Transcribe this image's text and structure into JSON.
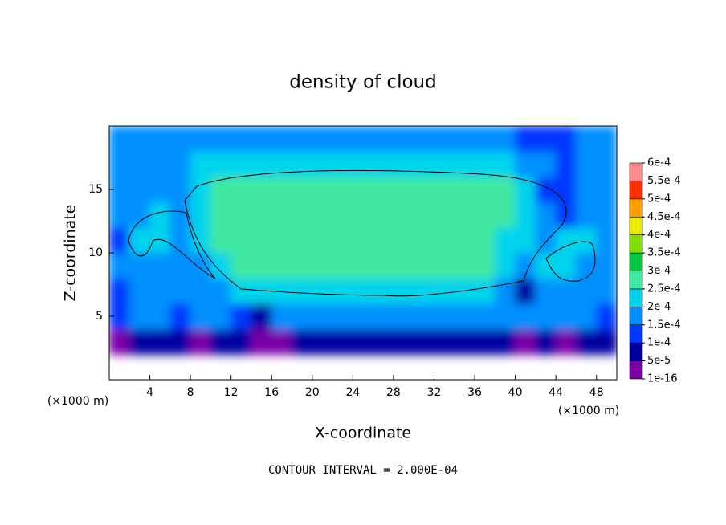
{
  "chart_data": {
    "type": "heatmap",
    "title": "density of cloud",
    "x_label": "X-coordinate",
    "y_label": "Z-coordinate",
    "x_unit": "(×1000 m)",
    "y_unit": "(×1000 m)",
    "note": "CONTOUR INTERVAL = 2.000E-04",
    "xlim": [
      0,
      50
    ],
    "ylim": [
      0,
      20
    ],
    "xticks": [
      4,
      8,
      12,
      16,
      20,
      24,
      28,
      32,
      36,
      40,
      44,
      48
    ],
    "yticks": [
      5,
      10,
      15
    ],
    "x": [
      1,
      3,
      5,
      7,
      9,
      11,
      13,
      15,
      17,
      19,
      21,
      23,
      25,
      27,
      29,
      31,
      33,
      35,
      37,
      39,
      41,
      43,
      45,
      47,
      49
    ],
    "y": [
      1,
      3,
      5,
      7,
      9,
      11,
      13,
      15,
      17,
      19
    ],
    "z": [
      [
        null,
        null,
        null,
        null,
        null,
        null,
        null,
        null,
        null,
        null,
        null,
        null,
        null,
        null,
        null,
        null,
        null,
        null,
        null,
        null,
        null,
        null,
        null,
        null,
        null
      ],
      [
        4e-05,
        6e-05,
        8e-05,
        6e-05,
        4e-05,
        7e-05,
        5e-05,
        4e-05,
        4e-05,
        7e-05,
        8e-05,
        6e-05,
        7e-05,
        5e-05,
        8e-05,
        6e-05,
        7e-05,
        8e-05,
        6e-05,
        5e-05,
        4e-05,
        6e-05,
        4e-05,
        6e-05,
        7e-05
      ],
      [
        0.00014,
        0.00015,
        0.00016,
        0.00013,
        0.00015,
        0.00016,
        0.00011,
        9e-05,
        0.00016,
        0.00016,
        0.00015,
        0.00016,
        0.00016,
        0.00015,
        0.00016,
        0.00016,
        0.00015,
        0.00016,
        0.00016,
        0.00016,
        0.00015,
        0.00016,
        0.00016,
        0.00015,
        0.00014
      ],
      [
        0.00013,
        0.00016,
        0.00017,
        0.00018,
        0.00016,
        0.00019,
        0.00021,
        0.00021,
        0.00021,
        0.00021,
        0.00021,
        0.00021,
        0.00021,
        0.00021,
        0.00021,
        0.00021,
        0.00021,
        0.00021,
        0.00021,
        0.00019,
        9e-05,
        0.00018,
        0.00018,
        0.00017,
        0.00016
      ],
      [
        0.00016,
        0.00017,
        0.00019,
        0.00015,
        0.00018,
        0.00022,
        0.00026,
        0.00026,
        0.00026,
        0.00026,
        0.00026,
        0.00026,
        0.00026,
        0.00026,
        0.00026,
        0.00026,
        0.00026,
        0.00026,
        0.00026,
        0.00021,
        0.00016,
        0.00021,
        0.00021,
        0.00019,
        0.00017
      ],
      [
        0.00013,
        0.00022,
        0.0002,
        0.00016,
        0.00022,
        0.00026,
        0.00026,
        0.00026,
        0.00026,
        0.00026,
        0.00026,
        0.00026,
        0.00026,
        0.00026,
        0.00026,
        0.00026,
        0.00026,
        0.00026,
        0.00026,
        0.00024,
        0.0002,
        0.00015,
        0.00021,
        0.00021,
        0.00016
      ],
      [
        0.00016,
        0.00016,
        0.0002,
        0.00018,
        0.00022,
        0.00026,
        0.00026,
        0.00026,
        0.00026,
        0.00026,
        0.00026,
        0.00026,
        0.00026,
        0.00026,
        0.00026,
        0.00026,
        0.00026,
        0.00026,
        0.00026,
        0.00026,
        0.00022,
        0.00015,
        0.00011,
        0.00015,
        0.00017
      ],
      [
        0.00018,
        0.00017,
        0.00018,
        0.00019,
        0.00022,
        0.00025,
        0.00025,
        0.00025,
        0.00025,
        0.00025,
        0.00025,
        0.00025,
        0.00025,
        0.00025,
        0.00025,
        0.00025,
        0.00025,
        0.00025,
        0.00025,
        0.00025,
        0.0002,
        0.00012,
        0.00012,
        0.00015,
        0.00016
      ],
      [
        0.00017,
        0.00017,
        0.00017,
        0.00017,
        0.00021,
        0.00021,
        0.00021,
        0.00021,
        0.00021,
        0.00021,
        0.00021,
        0.00021,
        0.00021,
        0.00021,
        0.00021,
        0.00021,
        0.00021,
        0.00021,
        0.00021,
        0.00021,
        0.00018,
        0.00015,
        0.00014,
        0.00016,
        0.00017
      ],
      [
        0.00017,
        0.00017,
        0.00017,
        0.00017,
        0.00017,
        0.00017,
        0.00017,
        0.00017,
        0.00017,
        0.00017,
        0.00017,
        0.00017,
        0.00017,
        0.00017,
        0.00017,
        0.00017,
        0.00017,
        0.00017,
        0.00017,
        0.00017,
        0.00011,
        0.00011,
        0.00014,
        0.00017,
        0.00017
      ]
    ],
    "colorbar": {
      "levels": [
        {
          "value": 1e-16,
          "label": "1e-16"
        },
        {
          "value": 5e-05,
          "label": "5e-5"
        },
        {
          "value": 0.0001,
          "label": "1e-4"
        },
        {
          "value": 0.00015,
          "label": "1.5e-4"
        },
        {
          "value": 0.0002,
          "label": "2e-4"
        },
        {
          "value": 0.00025,
          "label": "2.5e-4"
        },
        {
          "value": 0.0003,
          "label": "3e-4"
        },
        {
          "value": 0.00035,
          "label": "3.5e-4"
        },
        {
          "value": 0.0004,
          "label": "4e-4"
        },
        {
          "value": 0.00045,
          "label": "4.5e-4"
        },
        {
          "value": 0.0005,
          "label": "5e-4"
        },
        {
          "value": 0.00055,
          "label": "5.5e-4"
        },
        {
          "value": 0.0006,
          "label": "6e-4"
        }
      ],
      "colors": [
        "#7a00a8",
        "#0000a0",
        "#0038ff",
        "#0090ff",
        "#00d4ec",
        "#40e8a0",
        "#00c840",
        "#80e000",
        "#e8e800",
        "#ffa000",
        "#ff3000",
        "#ff8c8c"
      ]
    }
  }
}
